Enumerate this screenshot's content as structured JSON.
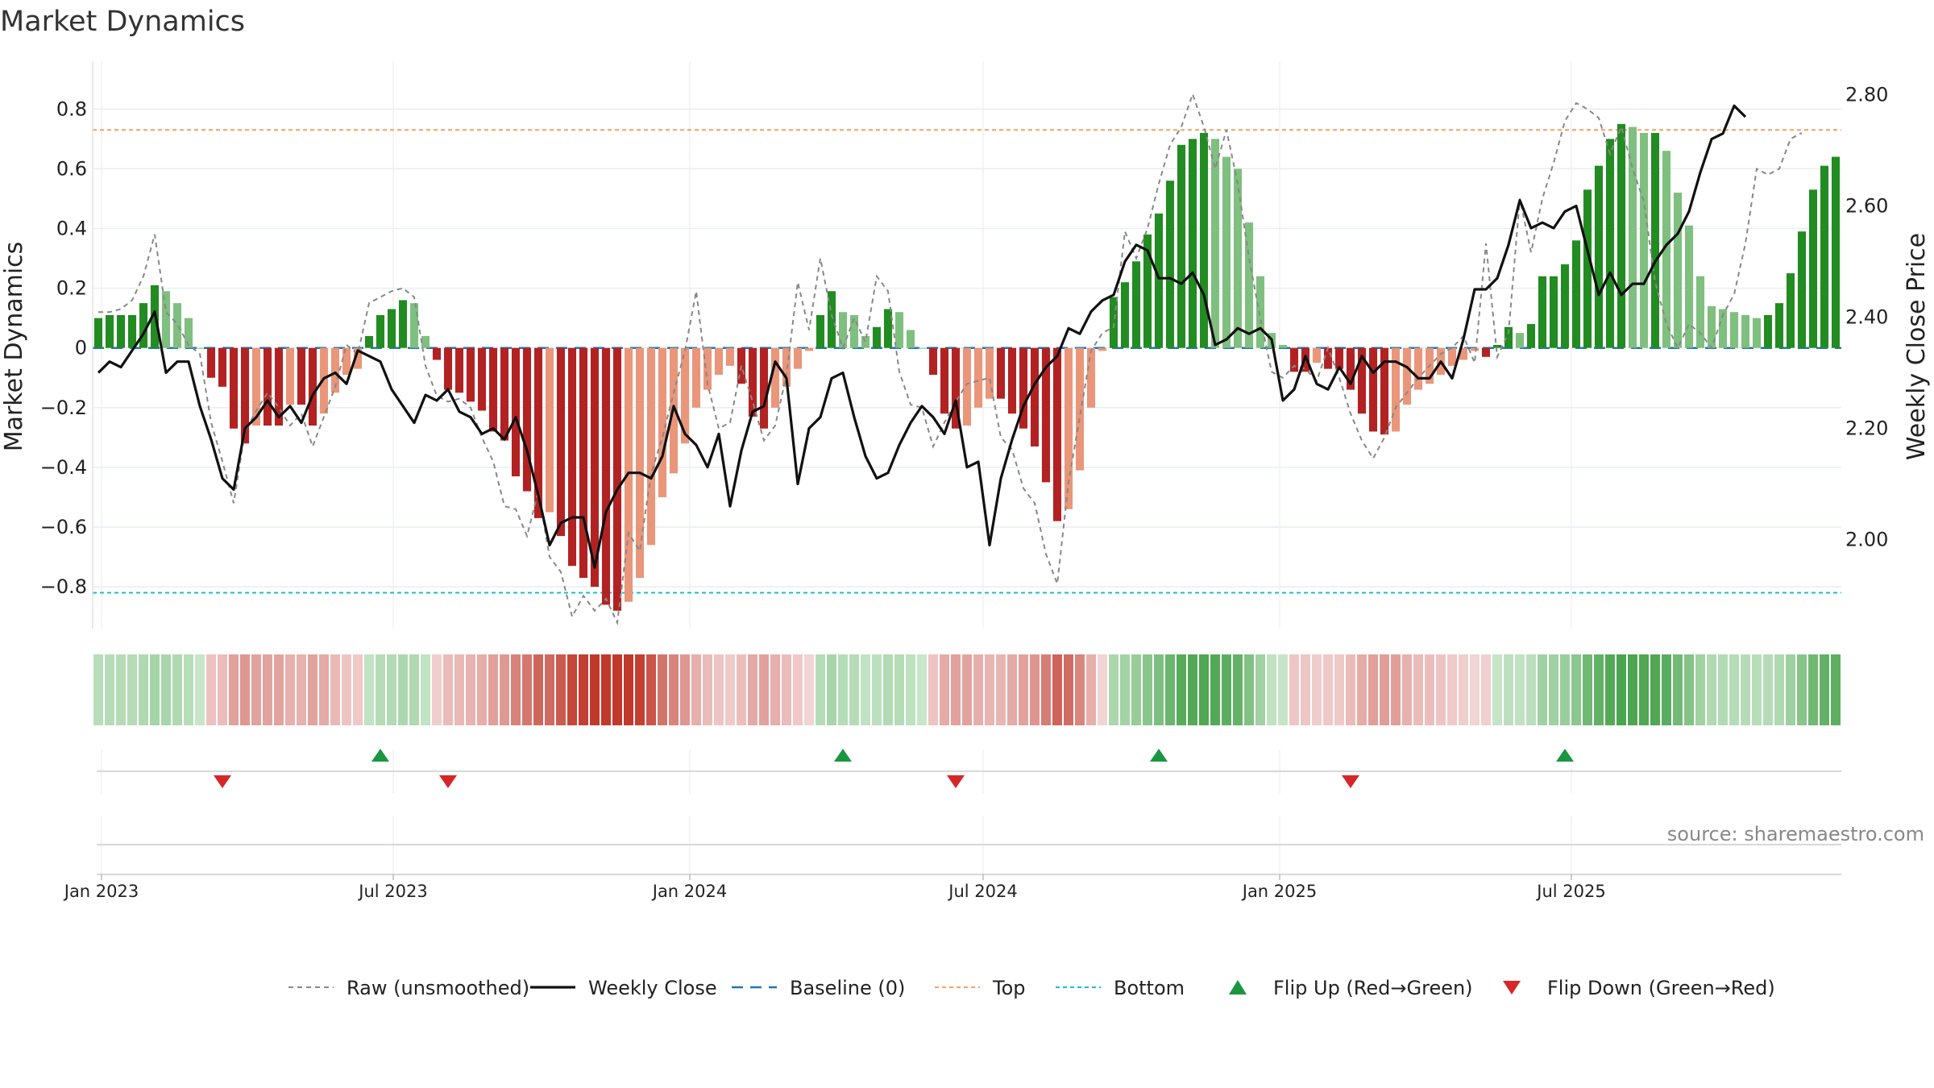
{
  "title": "Market Dynamics",
  "source_text": "source: sharemaestro.com",
  "colors": {
    "green_strong": "#228b22",
    "green_light": "#7fbf7f",
    "red_strong": "#b22222",
    "red_light": "#e9967a",
    "weekly_close": "#111111",
    "raw": "#888888",
    "baseline": "#1f77b4",
    "top": "#f4a261",
    "bottom": "#17becf",
    "flip_up": "#1a9641",
    "flip_down": "#d62728"
  },
  "chart_data": {
    "type": "bar",
    "title": "Market Dynamics",
    "ylabel": "Market Dynamics",
    "y2label": "Weekly Close Price",
    "ylim": [
      -0.94,
      0.96
    ],
    "y2lim": [
      1.84,
      2.86
    ],
    "yticks": [
      "0.8",
      "0.6",
      "0.4",
      "0.2",
      "0",
      "−0.2",
      "−0.4",
      "−0.6",
      "−0.8"
    ],
    "yticks_values": [
      0.8,
      0.6,
      0.4,
      0.2,
      0,
      -0.2,
      -0.4,
      -0.6,
      -0.8
    ],
    "y2ticks": [
      "2.80",
      "2.60",
      "2.40",
      "2.20",
      "2.00"
    ],
    "y2ticks_values": [
      2.8,
      2.6,
      2.4,
      2.2,
      2.0
    ],
    "x_start": "2022-12-30",
    "x_interval": "weekly",
    "xticks": [
      "Jan 2023",
      "Jul 2023",
      "Jan 2024",
      "Jul 2024",
      "Jan 2025",
      "Jul 2025"
    ],
    "xticks_dates": [
      "2023-01-01",
      "2023-07-01",
      "2024-01-01",
      "2024-07-01",
      "2025-01-01",
      "2025-07-01"
    ],
    "grid": true,
    "top_line": 0.73,
    "bottom_line": -0.82,
    "baseline": 0,
    "legend_position": "bottom-center",
    "series": [
      {
        "name": "Market Dynamics",
        "values": [
          0.1,
          0.11,
          0.11,
          0.11,
          0.15,
          0.21,
          0.19,
          0.15,
          0.1,
          0.0,
          -0.1,
          -0.13,
          -0.27,
          -0.32,
          -0.26,
          -0.26,
          -0.26,
          -0.19,
          -0.19,
          -0.26,
          -0.22,
          -0.15,
          -0.09,
          -0.07,
          0.04,
          0.11,
          0.13,
          0.16,
          0.15,
          0.04,
          -0.04,
          -0.14,
          -0.15,
          -0.18,
          -0.21,
          -0.28,
          -0.31,
          -0.43,
          -0.48,
          -0.57,
          -0.55,
          -0.63,
          -0.73,
          -0.77,
          -0.8,
          -0.86,
          -0.88,
          -0.85,
          -0.77,
          -0.66,
          -0.5,
          -0.42,
          -0.32,
          -0.2,
          -0.14,
          -0.09,
          -0.06,
          -0.12,
          -0.23,
          -0.27,
          -0.2,
          -0.13,
          -0.07,
          -0.01,
          0.11,
          0.19,
          0.12,
          0.11,
          0.04,
          0.07,
          0.13,
          0.12,
          0.06,
          0.0,
          -0.09,
          -0.22,
          -0.27,
          -0.26,
          -0.2,
          -0.17,
          -0.17,
          -0.22,
          -0.27,
          -0.33,
          -0.45,
          -0.58,
          -0.54,
          -0.41,
          -0.2,
          -0.01,
          0.17,
          0.22,
          0.29,
          0.38,
          0.45,
          0.56,
          0.68,
          0.7,
          0.72,
          0.7,
          0.64,
          0.6,
          0.42,
          0.24,
          0.05,
          0.01,
          -0.08,
          -0.08,
          -0.05,
          -0.07,
          -0.07,
          -0.14,
          -0.22,
          -0.28,
          -0.29,
          -0.28,
          -0.19,
          -0.14,
          -0.12,
          -0.09,
          -0.06,
          -0.04,
          -0.01,
          -0.03,
          0.01,
          0.07,
          0.05,
          0.08,
          0.24,
          0.24,
          0.28,
          0.36,
          0.53,
          0.61,
          0.7,
          0.75,
          0.74,
          0.72,
          0.72,
          0.66,
          0.52,
          0.41,
          0.24,
          0.14,
          0.13,
          0.12,
          0.11,
          0.1,
          0.11,
          0.15,
          0.25,
          0.39,
          0.53,
          0.61,
          0.64
        ]
      },
      {
        "name": "Raw (unsmoothed)",
        "values": [
          0.12,
          0.12,
          0.13,
          0.16,
          0.24,
          0.38,
          0.12,
          0.08,
          0.01,
          -0.02,
          -0.25,
          -0.38,
          -0.52,
          -0.28,
          -0.21,
          -0.15,
          -0.2,
          -0.26,
          -0.22,
          -0.33,
          -0.23,
          -0.13,
          0.01,
          -0.02,
          0.15,
          0.17,
          0.19,
          0.2,
          0.17,
          -0.06,
          -0.16,
          -0.18,
          -0.17,
          -0.2,
          -0.3,
          -0.38,
          -0.53,
          -0.54,
          -0.63,
          -0.48,
          -0.7,
          -0.75,
          -0.9,
          -0.83,
          -0.88,
          -0.84,
          -0.92,
          -0.62,
          -0.68,
          -0.42,
          -0.3,
          -0.15,
          -0.01,
          0.19,
          -0.12,
          -0.27,
          -0.25,
          -0.06,
          -0.18,
          -0.31,
          -0.26,
          -0.09,
          0.22,
          0.06,
          0.3,
          0.11,
          0.0,
          0.1,
          0.02,
          0.24,
          0.19,
          -0.08,
          -0.19,
          -0.2,
          -0.33,
          -0.25,
          -0.18,
          -0.12,
          -0.11,
          -0.1,
          -0.3,
          -0.34,
          -0.47,
          -0.52,
          -0.69,
          -0.79,
          -0.45,
          -0.23,
          -0.01,
          0.05,
          0.07,
          0.39,
          0.3,
          0.4,
          0.55,
          0.68,
          0.74,
          0.85,
          0.74,
          0.6,
          0.73,
          0.55,
          0.3,
          0.1,
          -0.08,
          -0.1,
          -0.06,
          -0.07,
          -0.11,
          0.0,
          -0.1,
          -0.22,
          -0.31,
          -0.37,
          -0.3,
          -0.2,
          -0.15,
          -0.1,
          -0.06,
          -0.02,
          0.0,
          0.04,
          -0.05,
          0.35,
          -0.03,
          0.05,
          0.5,
          0.32,
          0.5,
          0.62,
          0.76,
          0.82,
          0.8,
          0.77,
          0.65,
          0.74,
          0.6,
          0.49,
          0.22,
          0.08,
          0.0,
          0.08,
          0.05,
          0.0,
          0.11,
          0.18,
          0.35,
          0.6,
          0.58,
          0.6,
          0.7,
          0.72
        ]
      },
      {
        "name": "Weekly Close",
        "values": [
          2.3,
          2.32,
          2.31,
          2.34,
          2.37,
          2.41,
          2.3,
          2.32,
          2.32,
          2.24,
          2.18,
          2.11,
          2.09,
          2.2,
          2.22,
          2.25,
          2.22,
          2.24,
          2.21,
          2.26,
          2.29,
          2.3,
          2.28,
          2.34,
          2.33,
          2.32,
          2.27,
          2.24,
          2.21,
          2.26,
          2.25,
          2.27,
          2.23,
          2.22,
          2.19,
          2.2,
          2.18,
          2.22,
          2.16,
          2.08,
          1.99,
          2.03,
          2.04,
          2.04,
          1.95,
          2.05,
          2.09,
          2.12,
          2.12,
          2.11,
          2.15,
          2.24,
          2.19,
          2.17,
          2.13,
          2.19,
          2.06,
          2.16,
          2.23,
          2.24,
          2.32,
          2.29,
          2.1,
          2.2,
          2.22,
          2.29,
          2.3,
          2.22,
          2.15,
          2.11,
          2.12,
          2.17,
          2.21,
          2.24,
          2.22,
          2.19,
          2.25,
          2.13,
          2.14,
          1.99,
          2.11,
          2.18,
          2.24,
          2.28,
          2.31,
          2.33,
          2.38,
          2.37,
          2.41,
          2.43,
          2.44,
          2.5,
          2.53,
          2.52,
          2.47,
          2.47,
          2.46,
          2.48,
          2.44,
          2.35,
          2.36,
          2.38,
          2.37,
          2.38,
          2.36,
          2.25,
          2.27,
          2.33,
          2.28,
          2.27,
          2.31,
          2.28,
          2.33,
          2.3,
          2.32,
          2.32,
          2.31,
          2.29,
          2.29,
          2.32,
          2.29,
          2.36,
          2.45,
          2.45,
          2.47,
          2.53,
          2.61,
          2.56,
          2.57,
          2.56,
          2.59,
          2.6,
          2.52,
          2.44,
          2.48,
          2.44,
          2.46,
          2.46,
          2.5,
          2.53,
          2.55,
          2.59,
          2.66,
          2.72,
          2.73,
          2.78,
          2.76
        ]
      }
    ],
    "flip_up_weeks": [
      25,
      66,
      94,
      130
    ],
    "flip_down_weeks": [
      11,
      31,
      76,
      111
    ],
    "legend": [
      {
        "label": "Raw (unsmoothed)",
        "style": "dashed-grey"
      },
      {
        "label": "Weekly Close",
        "style": "solid-black"
      },
      {
        "label": "Baseline (0)",
        "style": "dashed-blue"
      },
      {
        "label": "Top",
        "style": "dotted-orange"
      },
      {
        "label": "Bottom",
        "style": "dotted-cyan"
      },
      {
        "label": "Flip Up (Red→Green)",
        "style": "triangle-up-green"
      },
      {
        "label": "Flip Down (Green→Red)",
        "style": "triangle-down-red"
      }
    ]
  }
}
